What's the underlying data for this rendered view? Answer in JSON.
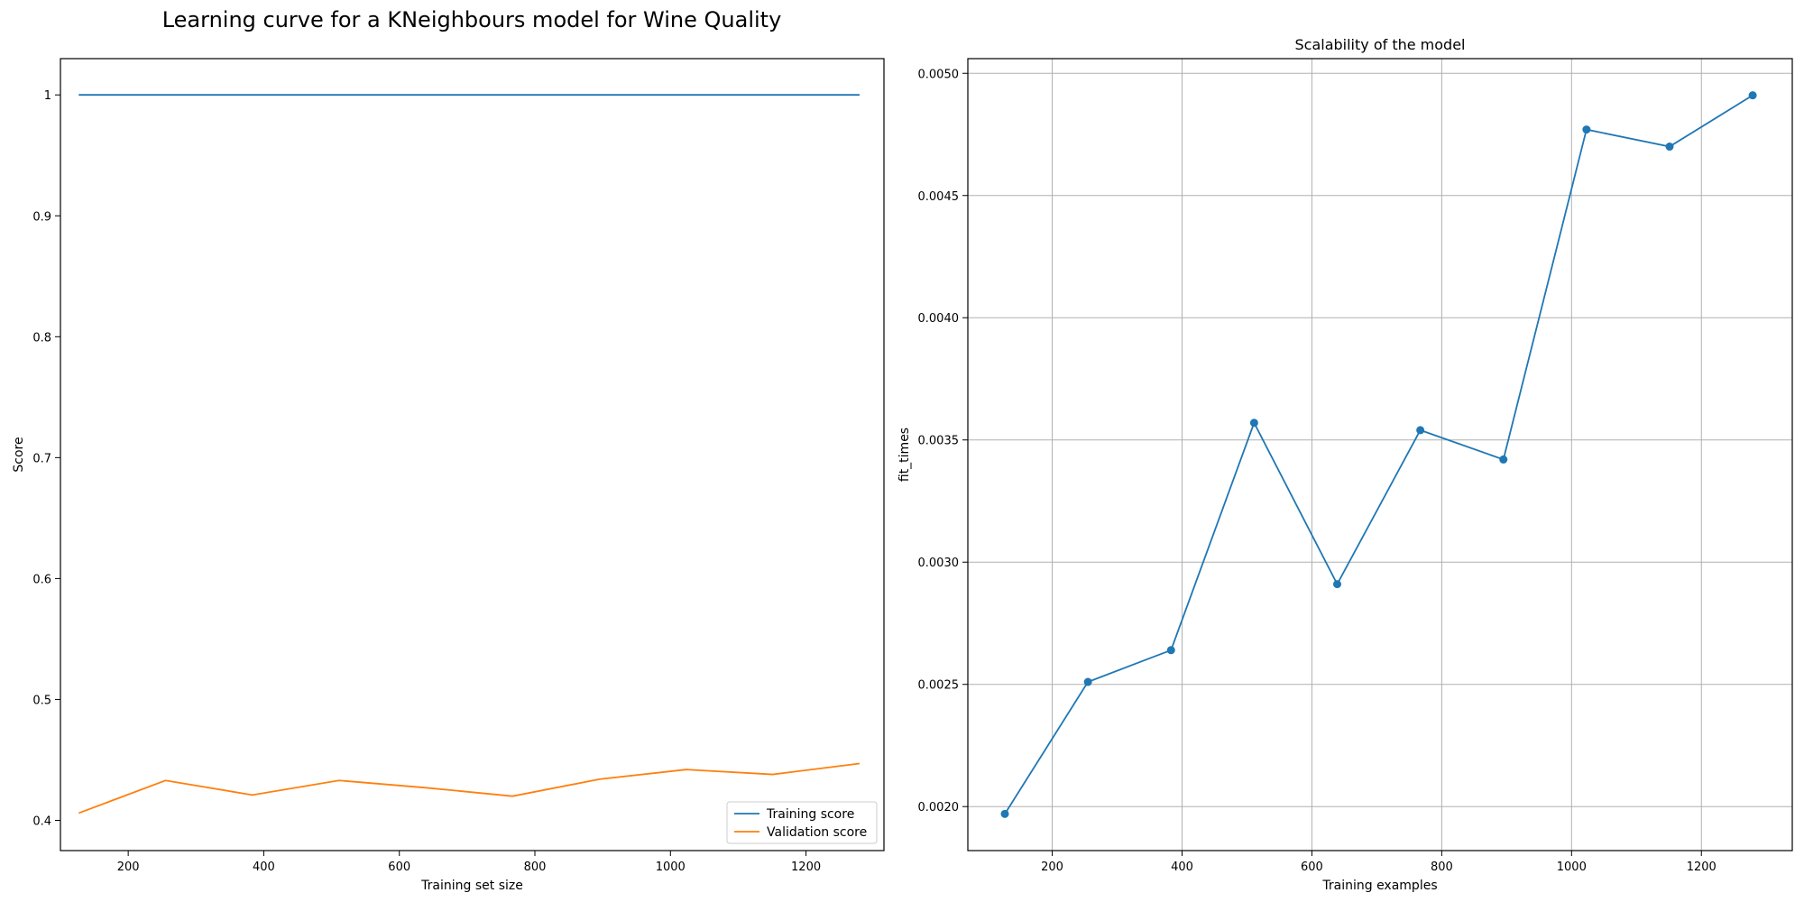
{
  "figure": {
    "title": "Learning curve for a KNeighbours model for Wine Quality"
  },
  "chart_data": [
    {
      "type": "line",
      "title": "",
      "xlabel": "Training set size",
      "ylabel": "Score",
      "xlim": [
        100,
        1315
      ],
      "ylim": [
        0.375,
        1.03
      ],
      "xticks": [
        200,
        400,
        600,
        800,
        1000,
        1200
      ],
      "yticks": [
        0.4,
        0.5,
        0.6,
        0.7,
        0.8,
        0.9,
        1.0
      ],
      "grid": false,
      "legend": "lower-right",
      "x": [
        127,
        255,
        383,
        511,
        639,
        767,
        895,
        1023,
        1151,
        1279
      ],
      "series": [
        {
          "name": "Training score",
          "color": "#1f77b4",
          "values": [
            1.0,
            1.0,
            1.0,
            1.0,
            1.0,
            1.0,
            1.0,
            1.0,
            1.0,
            1.0
          ]
        },
        {
          "name": "Validation score",
          "color": "#ff7f0e",
          "values": [
            0.406,
            0.433,
            0.421,
            0.433,
            0.427,
            0.42,
            0.434,
            0.442,
            0.438,
            0.447
          ]
        }
      ]
    },
    {
      "type": "line",
      "title": "Scalability of the model",
      "xlabel": "Training examples",
      "ylabel": "fit_times",
      "xlim": [
        70,
        1340
      ],
      "ylim": [
        0.00182,
        0.00506
      ],
      "xticks": [
        200,
        400,
        600,
        800,
        1000,
        1200
      ],
      "yticks": [
        0.002,
        0.0025,
        0.003,
        0.0035,
        0.004,
        0.0045,
        0.005
      ],
      "ytick_decimals": 4,
      "grid": true,
      "markers": true,
      "x": [
        127,
        255,
        383,
        511,
        639,
        767,
        895,
        1023,
        1151,
        1279
      ],
      "series": [
        {
          "color": "#1f77b4",
          "values": [
            0.00197,
            0.00251,
            0.00264,
            0.00357,
            0.00291,
            0.00354,
            0.00342,
            0.00477,
            0.0047,
            0.00491
          ]
        }
      ]
    }
  ]
}
